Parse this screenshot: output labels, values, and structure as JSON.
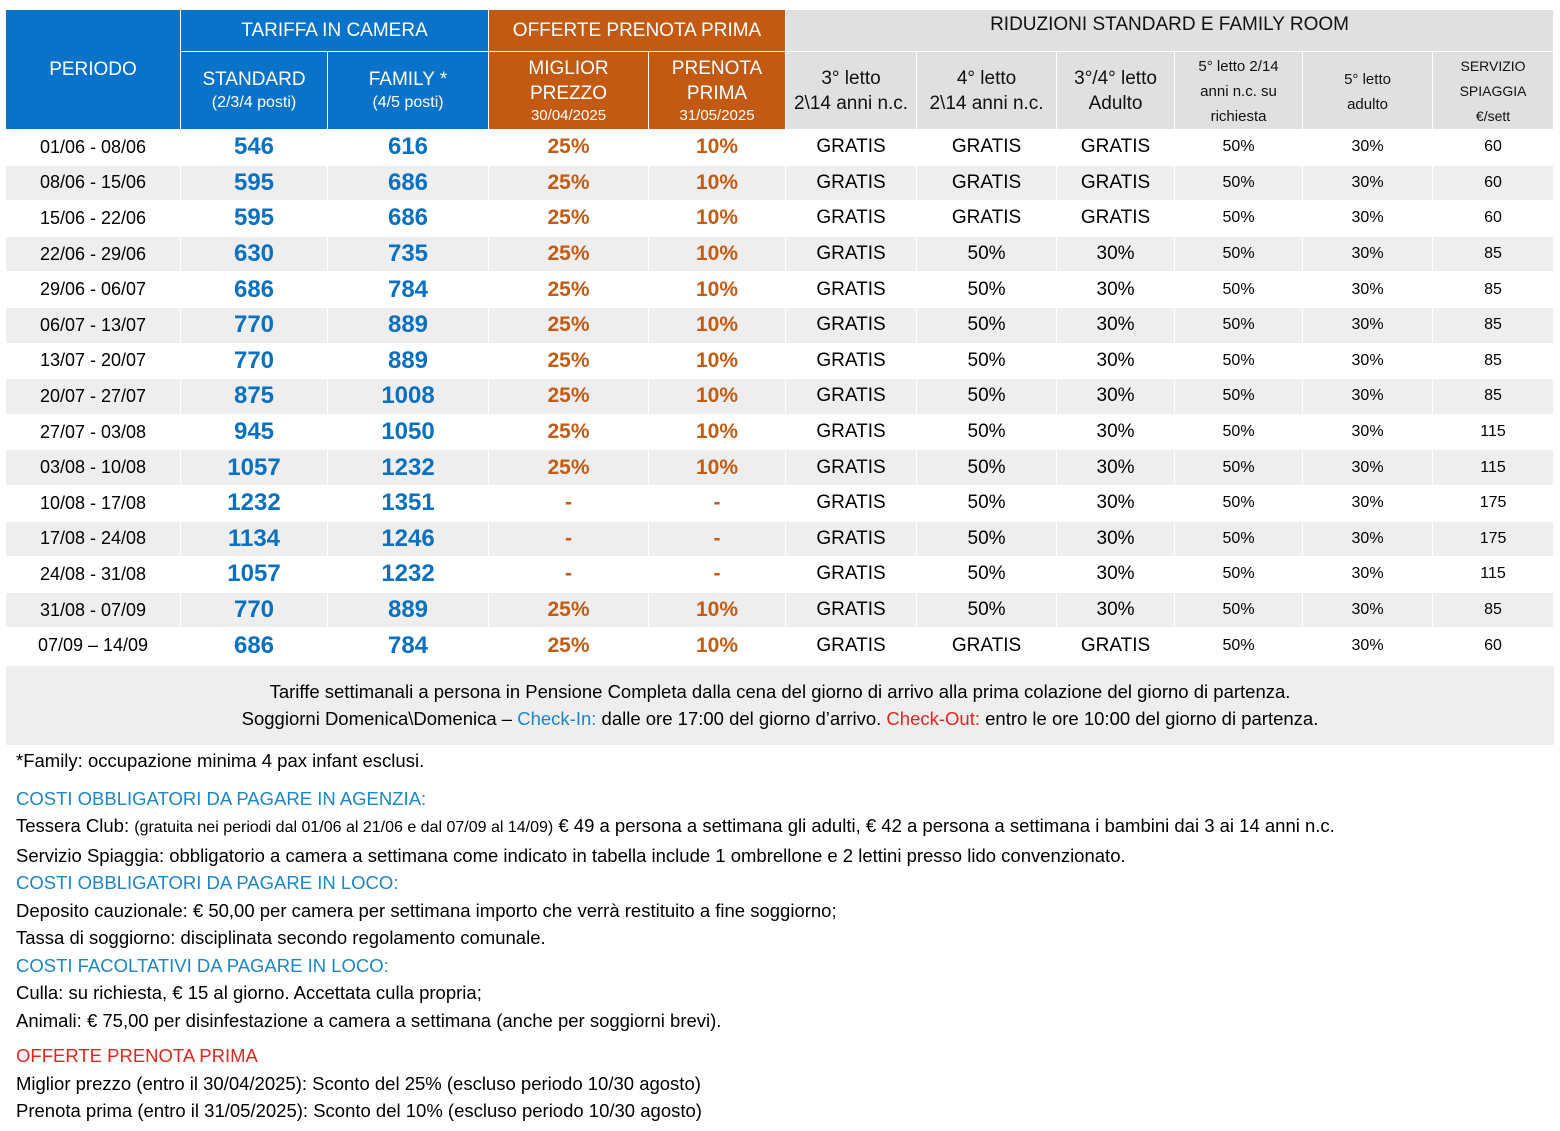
{
  "header": {
    "periodo": "PERIODO",
    "tariffa": "TARIFFA IN CAMERA",
    "offerte": "OFFERTE PRENOTA PRIMA",
    "riduzioni": "RIDUZIONI STANDARD E FAMILY ROOM",
    "standard": "STANDARD",
    "standard_sub": "(2/3/4 posti)",
    "family": "FAMILY *",
    "family_sub": "(4/5 posti)",
    "miglior_1": "MIGLIOR",
    "miglior_2": "PREZZO",
    "miglior_date": "30/04/2025",
    "prenota_1": "PRENOTA",
    "prenota_2": "PRIMA",
    "prenota_date": "31/05/2025",
    "letto3_1": "3° letto",
    "letto3_2": "2\\14 anni n.c.",
    "letto4_1": "4° letto",
    "letto4_2": "2\\14 anni n.c.",
    "letto34_1": "3°/4° letto",
    "letto34_2": "Adulto",
    "letto5c_1": "5° letto 2/14",
    "letto5c_2": "anni n.c. su",
    "letto5c_3": "richiesta",
    "letto5a_1": "5° letto",
    "letto5a_2": "adulto",
    "spiaggia_1": "SERVIZIO",
    "spiaggia_2": "SPIAGGIA",
    "spiaggia_3": "€/sett"
  },
  "rows": [
    {
      "periodo": "01/06 - 08/06",
      "standard": "546",
      "family": "616",
      "miglior": "25%",
      "prenota": "10%",
      "l3": "GRATIS",
      "l4": "GRATIS",
      "l34": "GRATIS",
      "l5c": "50%",
      "l5a": "30%",
      "spiaggia": "60"
    },
    {
      "periodo": "08/06 - 15/06",
      "standard": "595",
      "family": "686",
      "miglior": "25%",
      "prenota": "10%",
      "l3": "GRATIS",
      "l4": "GRATIS",
      "l34": "GRATIS",
      "l5c": "50%",
      "l5a": "30%",
      "spiaggia": "60"
    },
    {
      "periodo": "15/06 - 22/06",
      "standard": "595",
      "family": "686",
      "miglior": "25%",
      "prenota": "10%",
      "l3": "GRATIS",
      "l4": "GRATIS",
      "l34": "GRATIS",
      "l5c": "50%",
      "l5a": "30%",
      "spiaggia": "60"
    },
    {
      "periodo": "22/06 - 29/06",
      "standard": "630",
      "family": "735",
      "miglior": "25%",
      "prenota": "10%",
      "l3": "GRATIS",
      "l4": "50%",
      "l34": "30%",
      "l5c": "50%",
      "l5a": "30%",
      "spiaggia": "85"
    },
    {
      "periodo": "29/06 - 06/07",
      "standard": "686",
      "family": "784",
      "miglior": "25%",
      "prenota": "10%",
      "l3": "GRATIS",
      "l4": "50%",
      "l34": "30%",
      "l5c": "50%",
      "l5a": "30%",
      "spiaggia": "85"
    },
    {
      "periodo": "06/07 - 13/07",
      "standard": "770",
      "family": "889",
      "miglior": "25%",
      "prenota": "10%",
      "l3": "GRATIS",
      "l4": "50%",
      "l34": "30%",
      "l5c": "50%",
      "l5a": "30%",
      "spiaggia": "85"
    },
    {
      "periodo": "13/07 - 20/07",
      "standard": "770",
      "family": "889",
      "miglior": "25%",
      "prenota": "10%",
      "l3": "GRATIS",
      "l4": "50%",
      "l34": "30%",
      "l5c": "50%",
      "l5a": "30%",
      "spiaggia": "85"
    },
    {
      "periodo": "20/07 - 27/07",
      "standard": "875",
      "family": "1008",
      "miglior": "25%",
      "prenota": "10%",
      "l3": "GRATIS",
      "l4": "50%",
      "l34": "30%",
      "l5c": "50%",
      "l5a": "30%",
      "spiaggia": "85"
    },
    {
      "periodo": "27/07 - 03/08",
      "standard": "945",
      "family": "1050",
      "miglior": "25%",
      "prenota": "10%",
      "l3": "GRATIS",
      "l4": "50%",
      "l34": "30%",
      "l5c": "50%",
      "l5a": "30%",
      "spiaggia": "115"
    },
    {
      "periodo": "03/08 - 10/08",
      "standard": "1057",
      "family": "1232",
      "miglior": "25%",
      "prenota": "10%",
      "l3": "GRATIS",
      "l4": "50%",
      "l34": "30%",
      "l5c": "50%",
      "l5a": "30%",
      "spiaggia": "115"
    },
    {
      "periodo": "10/08 - 17/08",
      "standard": "1232",
      "family": "1351",
      "miglior": "-",
      "prenota": "-",
      "l3": "GRATIS",
      "l4": "50%",
      "l34": "30%",
      "l5c": "50%",
      "l5a": "30%",
      "spiaggia": "175"
    },
    {
      "periodo": "17/08 - 24/08",
      "standard": "1134",
      "family": "1246",
      "miglior": "-",
      "prenota": "-",
      "l3": "GRATIS",
      "l4": "50%",
      "l34": "30%",
      "l5c": "50%",
      "l5a": "30%",
      "spiaggia": "175"
    },
    {
      "periodo": "24/08 - 31/08",
      "standard": "1057",
      "family": "1232",
      "miglior": "-",
      "prenota": "-",
      "l3": "GRATIS",
      "l4": "50%",
      "l34": "30%",
      "l5c": "50%",
      "l5a": "30%",
      "spiaggia": "115"
    },
    {
      "periodo": "31/08 - 07/09",
      "standard": "770",
      "family": "889",
      "miglior": "25%",
      "prenota": "10%",
      "l3": "GRATIS",
      "l4": "50%",
      "l34": "30%",
      "l5c": "50%",
      "l5a": "30%",
      "spiaggia": "85"
    },
    {
      "periodo": "07/09 – 14/09",
      "standard": "686",
      "family": "784",
      "miglior": "25%",
      "prenota": "10%",
      "l3": "GRATIS",
      "l4": "GRATIS",
      "l34": "GRATIS",
      "l5c": "50%",
      "l5a": "30%",
      "spiaggia": "60"
    }
  ],
  "notebox": {
    "line1": "Tariffe settimanali a persona in Pensione Completa dalla cena del giorno di arrivo alla prima colazione del giorno di partenza.",
    "line2_pre": "Soggiorni Domenica\\Domenica – ",
    "checkin_label": "Check-In:",
    "checkin_text": " dalle ore 17:00 del giorno d’arrivo. ",
    "checkout_label": "Check-Out:",
    "checkout_text": " entro le ore 10:00 del giorno di partenza."
  },
  "notes": {
    "family_note": "*Family: occupazione minima 4 pax infant esclusi.",
    "agenzia_title": "COSTI OBBLIGATORI DA PAGARE IN AGENZIA:",
    "tessera_label": "Tessera Club: ",
    "tessera_small": "(gratuita nei periodi dal 01/06 al 21/06 e dal 07/09 al 14/09)",
    "tessera_text": " € 49 a persona a settimana gli adulti, € 42 a persona a settimana i bambini dai 3 ai 14 anni n.c.",
    "spiaggia": "Servizio Spiaggia: obbligatorio a camera a settimana come indicato in tabella include 1 ombrellone e 2 lettini presso lido convenzionato.",
    "loco_title": "COSTI OBBLIGATORI DA PAGARE IN LOCO:",
    "deposito": "Deposito cauzionale: € 50,00 per camera per settimana importo che verrà restituito a fine soggiorno;",
    "tassa": "Tassa di soggiorno: disciplinata secondo regolamento comunale.",
    "facoltativi_title": "COSTI FACOLTATIVI DA PAGARE IN LOCO:",
    "culla": "Culla: su richiesta, € 15 al giorno. Accettata culla propria;",
    "animali": "Animali: € 75,00 per disinfestazione a camera a settimana (anche per soggiorni brevi).",
    "offerte_title": "OFFERTE PRENOTA PRIMA",
    "miglior": "Miglior prezzo (entro il 30/04/2025): Sconto del 25% (escluso periodo 10/30 agosto)",
    "prenota": "Prenota prima (entro il 31/05/2025): Sconto del 10% (escluso periodo 10/30 agosto)"
  },
  "colors": {
    "header_blue": "#0873c8",
    "header_orange": "#c35a14",
    "header_grey": "#e0e0e0",
    "price_blue": "#0a70bf",
    "offer_orange": "#c25b13",
    "section_blue": "#1c86c8",
    "section_red": "#e1261c"
  }
}
